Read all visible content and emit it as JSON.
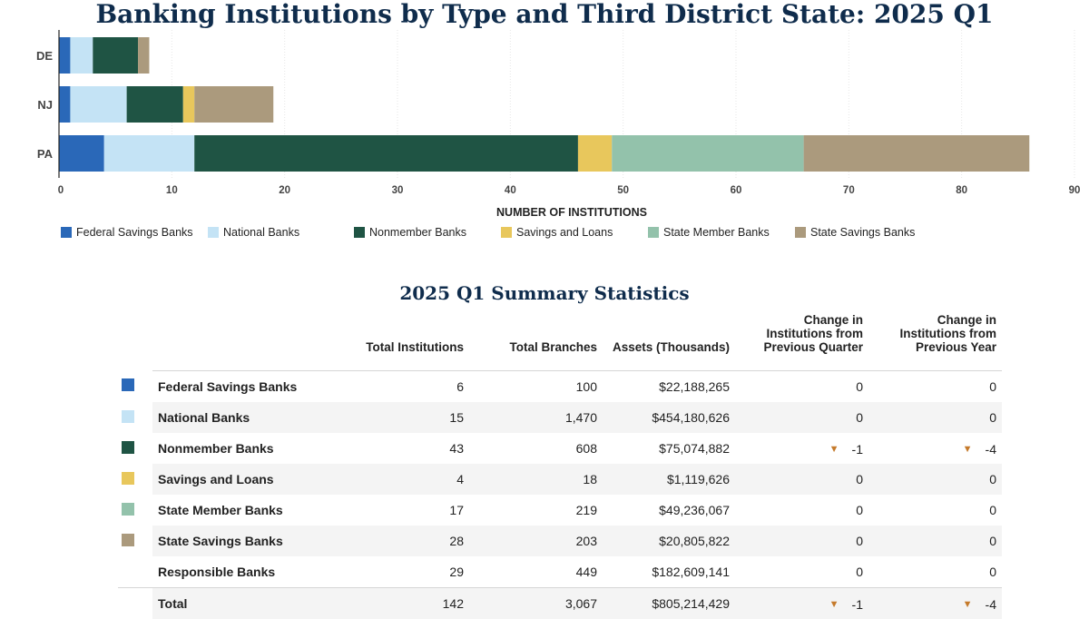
{
  "chart_data": {
    "type": "bar",
    "orientation": "horizontal",
    "stacked": true,
    "title": "Banking Institutions by Type and Third District State: 2025 Q1",
    "xlabel": "NUMBER OF INSTITUTIONS",
    "ylabel": "",
    "xlim": [
      0,
      90
    ],
    "xticks": [
      "0",
      "10",
      "20",
      "30",
      "40",
      "50",
      "60",
      "70",
      "80",
      "90"
    ],
    "categories": [
      "DE",
      "NJ",
      "PA"
    ],
    "series": [
      {
        "name": "Federal Savings Banks",
        "color": "#2a68b8",
        "values": [
          1,
          1,
          4
        ]
      },
      {
        "name": "National Banks",
        "color": "#c4e3f5",
        "values": [
          2,
          5,
          8
        ]
      },
      {
        "name": "Nonmember Banks",
        "color": "#1f5444",
        "values": [
          4,
          5,
          34
        ]
      },
      {
        "name": "Savings and Loans",
        "color": "#e8c75c",
        "values": [
          0,
          1,
          3
        ]
      },
      {
        "name": "State Member Banks",
        "color": "#93c2ab",
        "values": [
          0,
          0,
          17
        ]
      },
      {
        "name": "State Savings Banks",
        "color": "#ab9a7d",
        "values": [
          1,
          7,
          20
        ]
      }
    ],
    "grid": true,
    "legend_position": "bottom"
  },
  "table": {
    "title": "2025 Q1 Summary Statistics",
    "headers": {
      "institutions": "Total Institutions",
      "branches": "Total Branches",
      "assets": "Assets (Thousands)",
      "change_q_lines": [
        "Change in",
        "Institutions from",
        "Previous Quarter"
      ],
      "change_y_lines": [
        "Change in",
        "Institutions from",
        "Previous Year"
      ]
    },
    "rows": [
      {
        "name": "Federal Savings Banks",
        "color": "#2a68b8",
        "institutions": "6",
        "branches": "100",
        "assets": "$22,188,265",
        "change_q": "0",
        "change_y": "0"
      },
      {
        "name": "National Banks",
        "color": "#c4e3f5",
        "institutions": "15",
        "branches": "1,470",
        "assets": "$454,180,626",
        "change_q": "0",
        "change_y": "0"
      },
      {
        "name": "Nonmember Banks",
        "color": "#1f5444",
        "institutions": "43",
        "branches": "608",
        "assets": "$75,074,882",
        "change_q": "-1",
        "change_y": "-4"
      },
      {
        "name": "Savings and Loans",
        "color": "#e8c75c",
        "institutions": "4",
        "branches": "18",
        "assets": "$1,119,626",
        "change_q": "0",
        "change_y": "0"
      },
      {
        "name": "State Member Banks",
        "color": "#93c2ab",
        "institutions": "17",
        "branches": "219",
        "assets": "$49,236,067",
        "change_q": "0",
        "change_y": "0"
      },
      {
        "name": "State Savings Banks",
        "color": "#ab9a7d",
        "institutions": "28",
        "branches": "203",
        "assets": "$20,805,822",
        "change_q": "0",
        "change_y": "0"
      },
      {
        "name": "Responsible Banks",
        "color": "",
        "institutions": "29",
        "branches": "449",
        "assets": "$182,609,141",
        "change_q": "0",
        "change_y": "0"
      },
      {
        "name": "Total",
        "color": "",
        "institutions": "142",
        "branches": "3,067",
        "assets": "$805,214,429",
        "change_q": "-1",
        "change_y": "-4"
      }
    ],
    "down_arrow": "▼"
  }
}
